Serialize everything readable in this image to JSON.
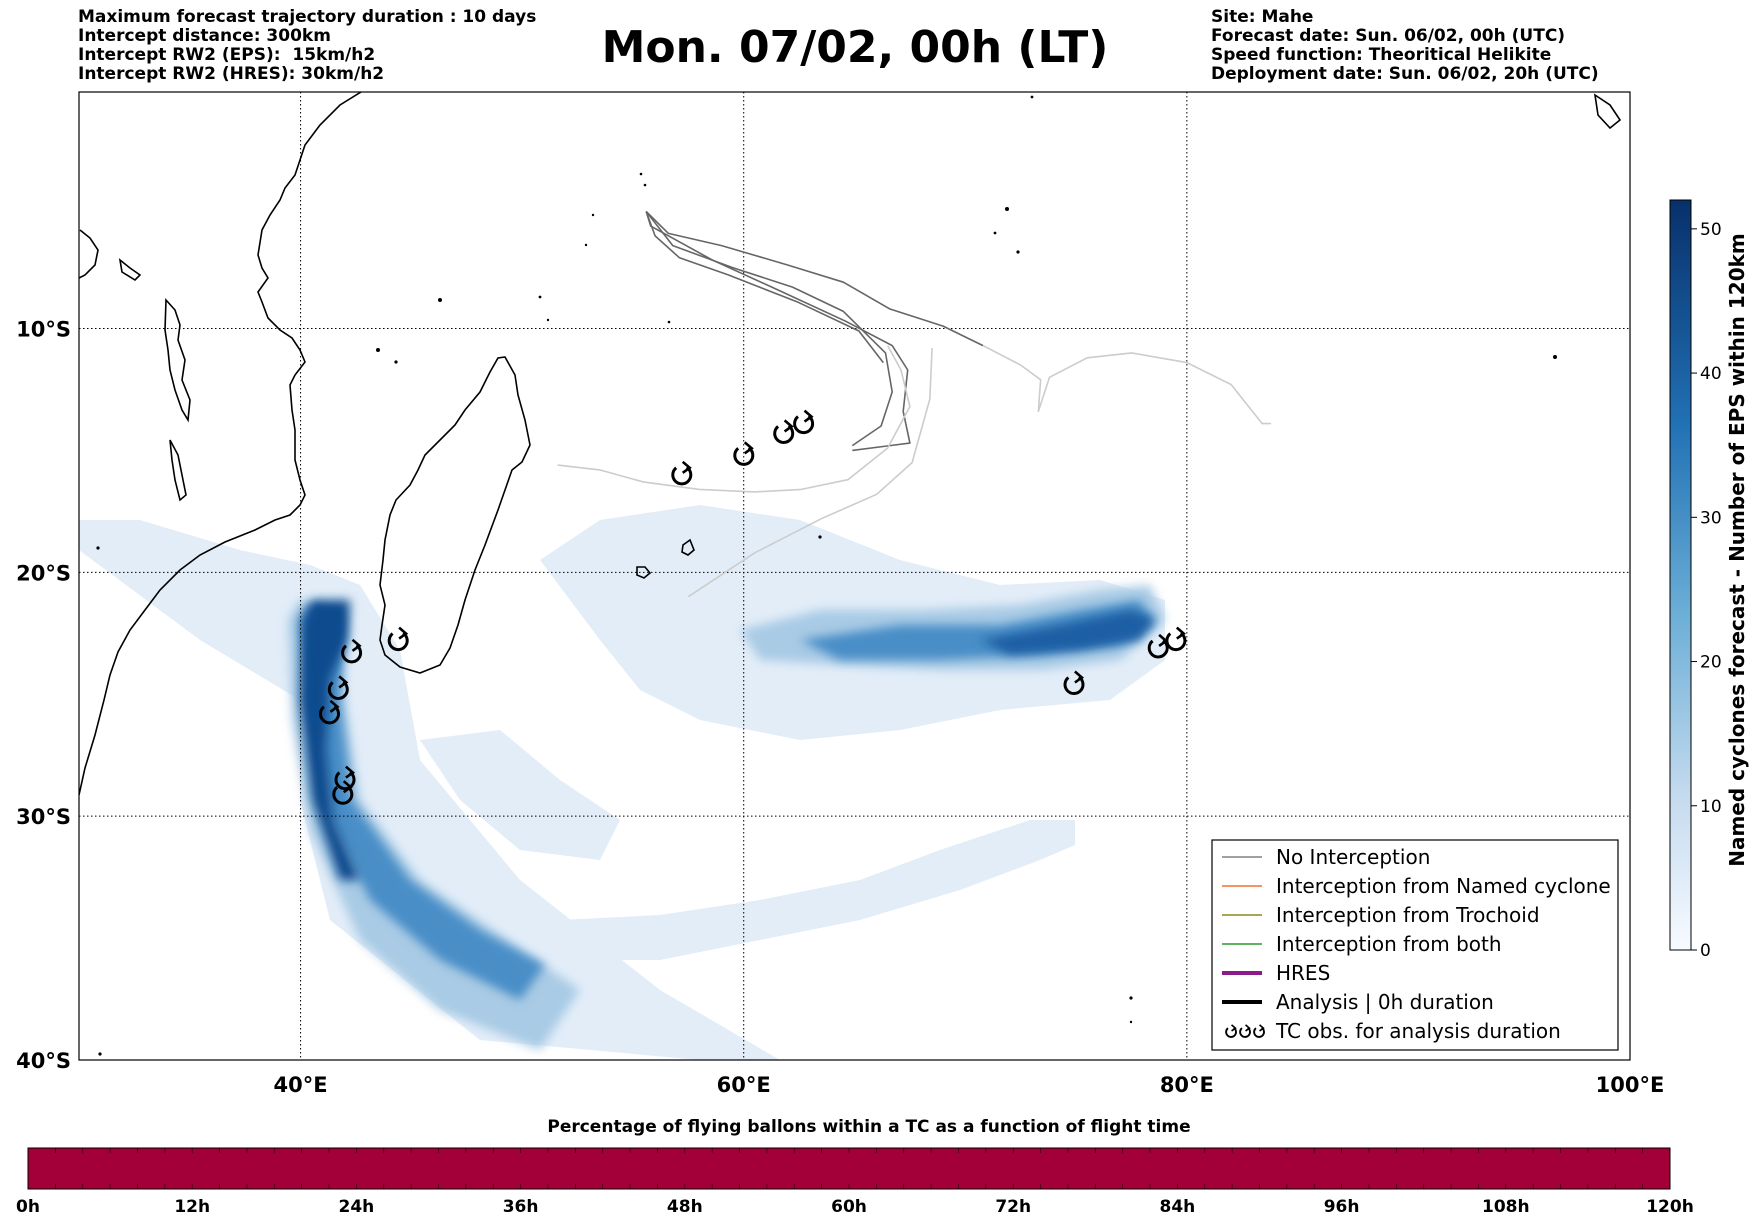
{
  "header_left": [
    "Maximum forecast trajectory duration : 10 days",
    "Intercept distance: 300km",
    "Intercept RW2 (EPS):  15km/h2",
    "Intercept RW2 (HRES): 30km/h2"
  ],
  "header_right": [
    "Site: Mahe",
    "Forecast date: Sun. 06/02, 00h (UTC)",
    "Speed function: Theoritical Helikite",
    "Deployment date: Sun. 06/02, 20h (UTC)"
  ],
  "main_title": "Mon. 07/02, 00h (LT)",
  "map": {
    "lon_range": [
      30,
      100
    ],
    "lat_range": [
      -40,
      -0.3
    ],
    "lon_ticks": [
      {
        "value": 40,
        "label": "40°E"
      },
      {
        "value": 60,
        "label": "60°E"
      },
      {
        "value": 80,
        "label": "80°E"
      },
      {
        "value": 100,
        "label": "100°E"
      }
    ],
    "lat_ticks": [
      {
        "value": -10,
        "label": "10°S"
      },
      {
        "value": -20,
        "label": "20°S"
      },
      {
        "value": -30,
        "label": "30°S"
      },
      {
        "value": -40,
        "label": "40°S"
      }
    ],
    "grid": true,
    "colorbar": {
      "min": 0,
      "max": 52,
      "ticks": [
        "0",
        "10",
        "20",
        "30",
        "40",
        "50"
      ],
      "label": "Named cyclones forecast - Number of EPS within 120km",
      "colormap": "Blues"
    },
    "tc_observations": [
      {
        "lon": 57.2,
        "lat": -16.0
      },
      {
        "lon": 60.0,
        "lat": -15.2
      },
      {
        "lon": 61.8,
        "lat": -14.3
      },
      {
        "lon": 62.7,
        "lat": -13.9
      },
      {
        "lon": 44.4,
        "lat": -22.8
      },
      {
        "lon": 42.3,
        "lat": -23.3
      },
      {
        "lon": 41.7,
        "lat": -24.8
      },
      {
        "lon": 41.3,
        "lat": -25.8
      },
      {
        "lon": 42.0,
        "lat": -28.5
      },
      {
        "lon": 41.9,
        "lat": -29.1
      },
      {
        "lon": 74.9,
        "lat": -24.6
      },
      {
        "lon": 78.7,
        "lat": -23.1
      },
      {
        "lon": 79.5,
        "lat": -22.8
      }
    ],
    "trajectories": [
      {
        "color": "#666666",
        "points": [
          [
            55.6,
            -5.2
          ],
          [
            56.6,
            -6.1
          ],
          [
            59,
            -6.6
          ],
          [
            62,
            -7.4
          ],
          [
            64.5,
            -8.1
          ],
          [
            66.6,
            -9.2
          ],
          [
            69,
            -9.9
          ],
          [
            70.8,
            -10.7
          ]
        ]
      },
      {
        "color": "#666666",
        "points": [
          [
            55.6,
            -5.2
          ],
          [
            56.8,
            -6.6
          ],
          [
            59.5,
            -7.5
          ],
          [
            62.2,
            -8.3
          ],
          [
            64.5,
            -9.3
          ],
          [
            66.4,
            -11.0
          ],
          [
            66.7,
            -12.6
          ],
          [
            66.2,
            -14.0
          ],
          [
            64.9,
            -14.8
          ]
        ]
      },
      {
        "color": "#666666",
        "points": [
          [
            55.6,
            -5.2
          ],
          [
            56.0,
            -6.2
          ],
          [
            57.1,
            -7.1
          ],
          [
            59.3,
            -7.8
          ],
          [
            62.4,
            -8.9
          ],
          [
            65.2,
            -10.1
          ],
          [
            66.3,
            -11.4
          ]
        ]
      },
      {
        "color": "#666666",
        "points": [
          [
            55.6,
            -5.2
          ],
          [
            55.8,
            -5.8
          ],
          [
            58.6,
            -7.2
          ],
          [
            61.5,
            -8.4
          ],
          [
            64.6,
            -9.7
          ],
          [
            66.7,
            -10.7
          ],
          [
            67.4,
            -11.7
          ],
          [
            67.2,
            -13.4
          ],
          [
            67.5,
            -14.7
          ],
          [
            64.9,
            -15.0
          ]
        ]
      },
      {
        "color": "#cccccc",
        "points": [
          [
            51.6,
            -15.6
          ],
          [
            53.5,
            -15.8
          ],
          [
            55.5,
            -16.3
          ],
          [
            58,
            -16.6
          ],
          [
            60.5,
            -16.7
          ],
          [
            62.6,
            -16.6
          ],
          [
            64.7,
            -16.2
          ],
          [
            66.5,
            -14.9
          ],
          [
            67.5,
            -13.2
          ],
          [
            67.1,
            -11.7
          ],
          [
            66.5,
            -10.7
          ]
        ]
      },
      {
        "color": "#cccccc",
        "points": [
          [
            57.5,
            -21.0
          ],
          [
            60.5,
            -19.2
          ],
          [
            63.5,
            -17.8
          ],
          [
            66.0,
            -16.8
          ],
          [
            67.6,
            -15.5
          ],
          [
            68.4,
            -12.9
          ],
          [
            68.5,
            -10.8
          ]
        ]
      },
      {
        "color": "#cccccc",
        "points": [
          [
            70.8,
            -10.7
          ],
          [
            72.5,
            -11.5
          ],
          [
            73.4,
            -12.1
          ],
          [
            73.3,
            -13.4
          ],
          [
            73.8,
            -12.0
          ],
          [
            75.5,
            -11.2
          ],
          [
            77.5,
            -11.0
          ],
          [
            80,
            -11.4
          ],
          [
            82,
            -12.3
          ],
          [
            83.4,
            -13.9
          ],
          [
            83.8,
            -13.9
          ]
        ]
      }
    ],
    "legend": [
      {
        "label": "No Interception",
        "color": "#808080",
        "style": "thin"
      },
      {
        "label": "Interception from Named cyclone",
        "color": "#f07030",
        "style": "thin"
      },
      {
        "label": "Interception from Trochoid",
        "color": "#8a8a1a",
        "style": "thin"
      },
      {
        "label": "Interception from both",
        "color": "#2c9a2c",
        "style": "thin"
      },
      {
        "label": "HRES",
        "color": "#8b1a8b",
        "style": "thick"
      },
      {
        "label": "Analysis | 0h duration",
        "color": "#000000",
        "style": "thick"
      },
      {
        "label": "TC obs. for analysis duration",
        "color": "#000000",
        "style": "tc-icons"
      }
    ],
    "legend_placement": "lower-right"
  },
  "percentage_chart": {
    "title": "Percentage of flying ballons within a TC as a function of flight time",
    "fill_color": "#a3003a",
    "ticks": [
      "0h",
      "12h",
      "24h",
      "36h",
      "48h",
      "60h",
      "72h",
      "84h",
      "96h",
      "108h",
      "120h"
    ]
  }
}
